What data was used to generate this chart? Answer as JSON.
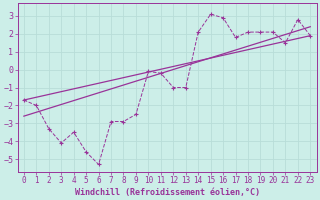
{
  "xlabel": "Windchill (Refroidissement éolien,°C)",
  "background_color": "#cceee8",
  "grid_color": "#aaddcc",
  "line_color": "#993399",
  "xlim": [
    -0.5,
    23.5
  ],
  "ylim": [
    -5.7,
    3.7
  ],
  "x_ticks": [
    0,
    1,
    2,
    3,
    4,
    5,
    6,
    7,
    8,
    9,
    10,
    11,
    12,
    13,
    14,
    15,
    16,
    17,
    18,
    19,
    20,
    21,
    22,
    23
  ],
  "y_ticks": [
    -5,
    -4,
    -3,
    -2,
    -1,
    0,
    1,
    2,
    3
  ],
  "data_x": [
    0,
    1,
    2,
    3,
    4,
    5,
    6,
    7,
    8,
    9,
    10,
    11,
    12,
    13,
    14,
    15,
    16,
    17,
    18,
    19,
    20,
    21,
    22,
    23
  ],
  "data_y": [
    -1.7,
    -2.0,
    -3.3,
    -4.1,
    -3.5,
    -4.6,
    -5.3,
    -2.9,
    -2.9,
    -2.5,
    -0.1,
    -0.2,
    -1.0,
    -1.0,
    2.1,
    3.1,
    2.9,
    1.8,
    2.1,
    2.1,
    2.1,
    1.5,
    2.8,
    1.9
  ],
  "line1_x": [
    0,
    23
  ],
  "line1_y": [
    -1.7,
    1.9
  ],
  "line2_x": [
    0,
    23
  ],
  "line2_y": [
    -2.6,
    2.4
  ],
  "tick_fontsize": 5.5,
  "label_fontsize": 6.0
}
